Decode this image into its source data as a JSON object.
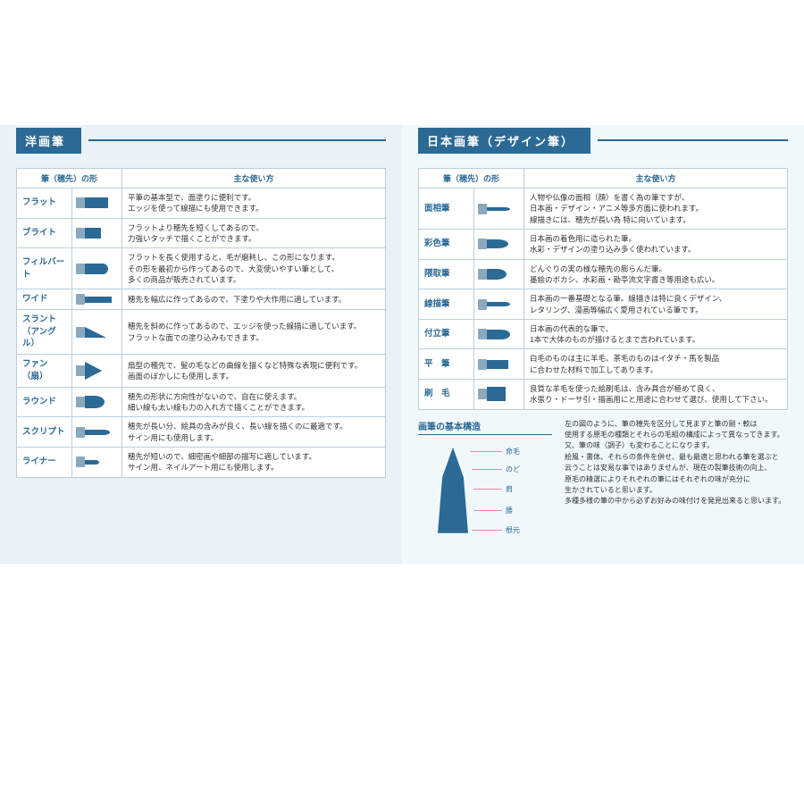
{
  "page": {
    "background": "#ffffff",
    "panel_bg_left": "#e8f2f8",
    "panel_bg_right": "#f0f8fc",
    "accent": "#2b6a95",
    "leader_color": "#e58aa3",
    "ferrule_color": "#8aa9bf",
    "font_family": "Hiragino Sans",
    "body_fontsize": 9,
    "heading_fontsize": 13
  },
  "left": {
    "heading": "洋画筆",
    "col_shape_header": "筆（穂先）の形",
    "col_usage_header": "主な使い方",
    "rows": [
      {
        "name": "フラット",
        "shape": "flat",
        "desc": "平筆の基本型で、面塗りに便利です。\nエッジを使って線描にも使用できます。"
      },
      {
        "name": "ブライト",
        "shape": "bright",
        "desc": "フラットより穂先を短くしてあるので、\n力強いタッチで描くことができます。"
      },
      {
        "name": "フィルバート",
        "shape": "filbert",
        "desc": "フラットを長く使用すると、毛が磨耗し、この形になります。\nその形を最初から作ってあるので、大変使いやすい筆として、\n多くの商品が販売されています。"
      },
      {
        "name": "ワイド",
        "shape": "wide",
        "desc": "穂先を幅広に作ってあるので、下塗りや大作用に適しています。"
      },
      {
        "name": "スラント\n（アングル）",
        "shape": "slant",
        "desc": "穂先を斜めに作ってあるので、エッジを使った線描に適しています。\nフラットな面での塗り込みもできます。"
      },
      {
        "name": "ファン（扇）",
        "shape": "fan",
        "desc": "扇型の穂先で、髪の毛などの曲線を描くなど特殊な表現に便利です。\n画面のぼかしにも使用します。"
      },
      {
        "name": "ラウンド",
        "shape": "round",
        "desc": "穂先の形状に方向性がないので、自在に使えます。\n細い線も太い線も力の入れ方で描くことができます。"
      },
      {
        "name": "スクリプト",
        "shape": "script",
        "desc": "穂先が長い分、絵具の含みが良く、長い線を描くのに最適です。\nサイン用にも使用します。"
      },
      {
        "name": "ライナー",
        "shape": "liner",
        "desc": "穂先が短いので、細密画や細部の描写に適しています。\nサイン用、ネイルアート用にも使用します。"
      }
    ]
  },
  "right": {
    "heading": "日本画筆（デザイン筆）",
    "col_shape_header": "筆（穂先）の形",
    "col_usage_header": "主な使い方",
    "rows": [
      {
        "name": "面相筆",
        "shape": "menso",
        "desc": "人物や仏像の面相（顔）を書く為の筆ですが、\n日本画・デザイン・アニメ等多方面に使われます。\n線描きには、穂先が長い為 特に向いています。"
      },
      {
        "name": "彩色筆",
        "shape": "saishiki",
        "desc": "日本画の着色用に造られた筆。\n水彩・デザインの塗り込み多く使われています。"
      },
      {
        "name": "隈取筆",
        "shape": "kumadori",
        "desc": "どんぐりの実の様な穂先の膨らんだ筆。\n墨絵のボカシ、水彩画・勘亭流文字書き等用途も広い。"
      },
      {
        "name": "線描筆",
        "shape": "sengaki",
        "desc": "日本画の一番基礎となる筆。線描きは特に良くデザイン、\nレタリング、漫画等幅広く愛用されている筆です。"
      },
      {
        "name": "付立筆",
        "shape": "tsuketate",
        "desc": "日本画の代表的な筆で、\n1本で大体のものが描けるとまで言われています。"
      },
      {
        "name": "平　筆",
        "shape": "hira",
        "desc": "白毛のものは主に羊毛、茶毛のものはイタチ・馬を製品\nに合わせた材料で加工してあります。"
      },
      {
        "name": "刷　毛",
        "shape": "hake",
        "desc": "良質な羊毛を使った絵刷毛は、含み具合が極めて良く、\n水張り・ドーサ引・描画用にと用途に合わせて選び、使用して下さい。"
      }
    ],
    "structure": {
      "title": "画筆の基本構造",
      "labels": [
        "命毛",
        "のど",
        "肩",
        "腰",
        "根元"
      ],
      "caption": "左の図のように、筆の穂先を区分して見ますと筆の剛・軟は\n使用する原毛の種類とそれらの毛組の構成によって異なってきます。\n又、筆の味（調子）も変わることになります。\n絵風・書体、それらの条件を併せ、最も最適と思われる筆を選ぶと\n云うことは安易な事ではありませんが、現在の製筆技術の向上、\n原毛の精選によりそれぞれの筆にはそれぞれの味が充分に\n生かされていると思います。\n多種多様の筆の中から必ずお好みの味付けを発見出来ると思います。"
    }
  }
}
